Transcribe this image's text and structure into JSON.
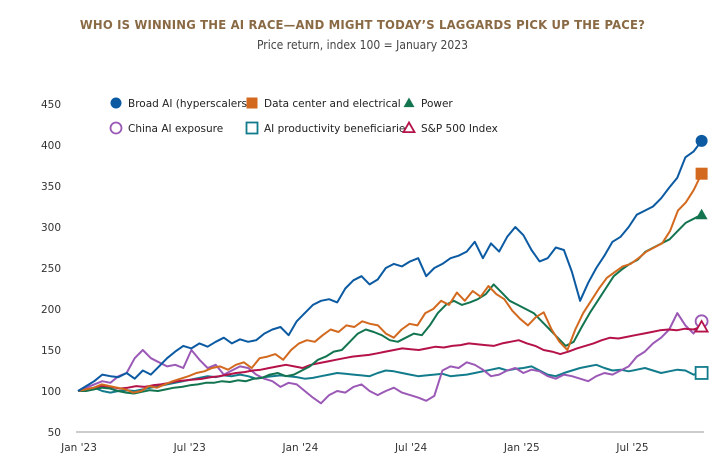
{
  "chart_data": {
    "type": "line",
    "title": "WHO IS WINNING THE AI RACE—AND MIGHT TODAY’S LAGGARDS PICK UP THE PACE?",
    "subtitle": "Price return, index 100 = January 2023",
    "xlabel": "",
    "ylabel": "",
    "ylim": [
      50,
      450
    ],
    "yticks": [
      50,
      100,
      150,
      200,
      250,
      300,
      350,
      400,
      450
    ],
    "xticks": [
      {
        "label": "Jan '23",
        "t": 0
      },
      {
        "label": "Jul '23",
        "t": 6
      },
      {
        "label": "Jan '24",
        "t": 12
      },
      {
        "label": "Jul '24",
        "t": 18
      },
      {
        "label": "Jan '25",
        "t": 24
      },
      {
        "label": "Jul '25",
        "t": 30
      }
    ],
    "xlim_months": [
      0,
      34
    ],
    "grid": false,
    "legend_position": "top-left",
    "series": [
      {
        "name": "Broad AI (hyperscalers)",
        "color": "#0b5aa2",
        "marker": "circle-filled",
        "values": [
          100,
          106,
          112,
          120,
          118,
          117,
          122,
          115,
          125,
          120,
          130,
          140,
          148,
          155,
          152,
          158,
          154,
          160,
          165,
          158,
          163,
          160,
          162,
          170,
          175,
          178,
          168,
          185,
          195,
          205,
          210,
          212,
          208,
          225,
          235,
          240,
          230,
          236,
          250,
          255,
          252,
          258,
          262,
          240,
          250,
          255,
          262,
          265,
          270,
          282,
          262,
          280,
          270,
          288,
          300,
          290,
          272,
          258,
          262,
          275,
          272,
          245,
          210,
          232,
          250,
          265,
          282,
          288,
          300,
          315,
          320,
          325,
          335,
          348,
          360,
          385,
          392,
          405
        ],
        "end_value": 405
      },
      {
        "name": "Data center and electrical",
        "color": "#d2691e",
        "marker": "square-filled",
        "values": [
          100,
          102,
          104,
          108,
          106,
          104,
          102,
          98,
          100,
          106,
          104,
          108,
          112,
          115,
          118,
          122,
          124,
          128,
          130,
          126,
          132,
          135,
          128,
          140,
          142,
          145,
          138,
          150,
          158,
          162,
          160,
          168,
          175,
          172,
          180,
          178,
          185,
          182,
          180,
          170,
          165,
          175,
          182,
          180,
          195,
          200,
          210,
          205,
          220,
          210,
          222,
          215,
          228,
          218,
          212,
          198,
          188,
          180,
          190,
          196,
          175,
          160,
          150,
          175,
          195,
          210,
          225,
          238,
          245,
          252,
          255,
          262,
          270,
          275,
          280,
          295,
          320,
          330,
          345,
          365
        ],
        "end_value": 365
      },
      {
        "name": "Power",
        "color": "#137450",
        "marker": "triangle-filled",
        "values": [
          100,
          100,
          102,
          104,
          103,
          100,
          98,
          97,
          99,
          101,
          100,
          102,
          104,
          105,
          107,
          108,
          110,
          110,
          112,
          111,
          113,
          112,
          115,
          116,
          120,
          122,
          118,
          120,
          125,
          130,
          138,
          142,
          148,
          150,
          160,
          170,
          175,
          172,
          168,
          162,
          160,
          165,
          170,
          168,
          180,
          195,
          205,
          210,
          205,
          208,
          212,
          218,
          230,
          220,
          210,
          205,
          200,
          195,
          185,
          175,
          165,
          155,
          160,
          178,
          195,
          210,
          225,
          240,
          248,
          255,
          260,
          270,
          275,
          280,
          285,
          295,
          305,
          310,
          315
        ],
        "end_value": 315
      },
      {
        "name": "China AI exposure",
        "color": "#9b59b6",
        "marker": "circle-open",
        "values": [
          100,
          104,
          108,
          112,
          110,
          118,
          122,
          140,
          150,
          140,
          135,
          130,
          132,
          128,
          150,
          138,
          128,
          132,
          120,
          125,
          130,
          128,
          120,
          115,
          112,
          105,
          110,
          108,
          100,
          92,
          85,
          95,
          100,
          98,
          105,
          108,
          100,
          95,
          100,
          104,
          98,
          95,
          92,
          88,
          94,
          125,
          130,
          128,
          135,
          132,
          126,
          118,
          120,
          125,
          128,
          122,
          126,
          124,
          118,
          115,
          120,
          118,
          115,
          112,
          118,
          122,
          120,
          125,
          130,
          142,
          148,
          158,
          165,
          175,
          195,
          180,
          170,
          185
        ],
        "end_value": 185
      },
      {
        "name": "AI productivity beneficiaries",
        "color": "#137c8c",
        "marker": "square-open",
        "values": [
          100,
          102,
          104,
          100,
          98,
          100,
          101,
          100,
          102,
          104,
          106,
          108,
          110,
          112,
          114,
          116,
          118,
          117,
          119,
          118,
          120,
          118,
          115,
          117,
          118,
          119,
          118,
          117,
          115,
          116,
          118,
          120,
          122,
          121,
          120,
          119,
          118,
          122,
          125,
          124,
          122,
          120,
          118,
          119,
          120,
          121,
          118,
          119,
          120,
          122,
          124,
          126,
          128,
          125,
          127,
          128,
          130,
          125,
          120,
          118,
          122,
          125,
          128,
          130,
          132,
          128,
          125,
          126,
          124,
          126,
          128,
          125,
          122,
          124,
          126,
          125,
          120,
          122
        ],
        "end_value": 122
      },
      {
        "name": "S&P 500 Index",
        "color": "#b5124a",
        "marker": "triangle-open",
        "values": [
          100,
          102,
          104,
          106,
          105,
          103,
          104,
          106,
          105,
          107,
          108,
          110,
          112,
          113,
          114,
          115,
          117,
          118,
          120,
          122,
          123,
          125,
          126,
          128,
          130,
          132,
          130,
          128,
          132,
          134,
          136,
          138,
          140,
          142,
          143,
          144,
          146,
          148,
          150,
          152,
          151,
          150,
          152,
          154,
          153,
          155,
          156,
          158,
          157,
          156,
          155,
          158,
          160,
          162,
          158,
          155,
          150,
          148,
          145,
          148,
          152,
          155,
          158,
          162,
          165,
          164,
          166,
          168,
          170,
          172,
          174,
          175,
          174,
          176,
          175,
          178
        ]
      }
    ]
  }
}
